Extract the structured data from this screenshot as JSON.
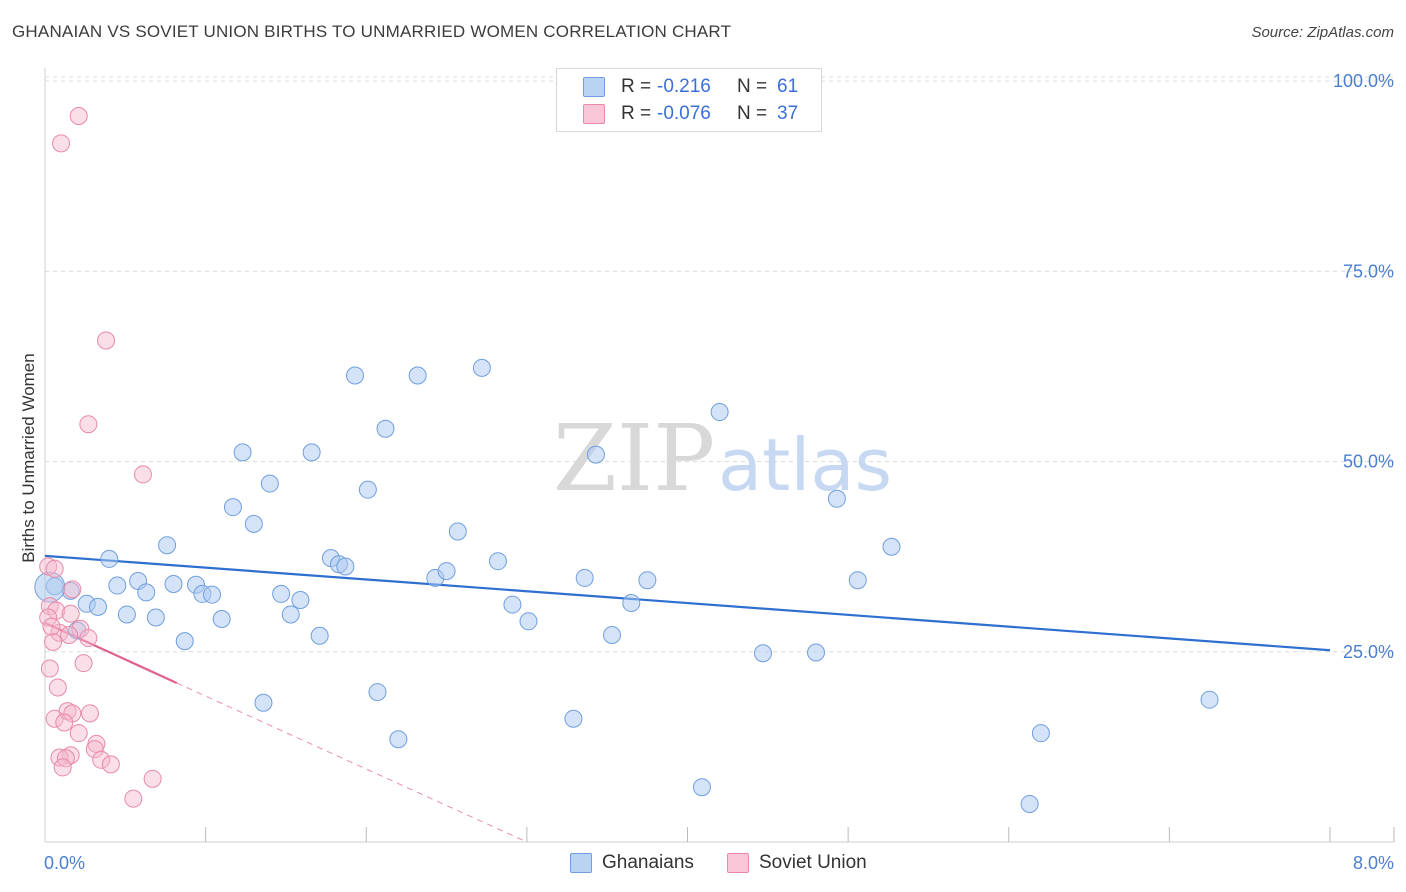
{
  "title": "GHANAIAN VS SOVIET UNION BIRTHS TO UNMARRIED WOMEN CORRELATION CHART",
  "source": "Source: ZipAtlas.com",
  "watermark": {
    "zip": "ZIP",
    "atlas": "atlas"
  },
  "colors": {
    "blue_fill": "#a9c8ef",
    "blue_stroke": "#6f9fe0",
    "blue_line": "#2e6fd0",
    "pink_fill": "#f5b8cb",
    "pink_stroke": "#e98aa8",
    "pink_line": "#e0608e",
    "grid": "#dcdcdc",
    "tick_text": "#4a7fd0"
  },
  "legend": {
    "rows": [
      {
        "r_label": "R =",
        "r_value": "-0.216",
        "n_label": "N =",
        "n_value": "61",
        "series": "blue"
      },
      {
        "r_label": "R =",
        "r_value": "-0.076",
        "n_label": "N =",
        "n_value": "37",
        "series": "pink"
      }
    ]
  },
  "bottom_legend": {
    "ghanaians": "Ghanaians",
    "soviet_union": "Soviet Union"
  },
  "chart_data": {
    "type": "scatter",
    "title": "GHANAIAN VS SOVIET UNION BIRTHS TO UNMARRIED WOMEN CORRELATION CHART",
    "ylabel": "Births to Unmarried Women",
    "xlabel": "",
    "xlim": [
      0,
      8
    ],
    "ylim": [
      0,
      100
    ],
    "x_tick_labels": {
      "min": "0.0%",
      "max": "8.0%"
    },
    "y_ticks": [
      {
        "value": 25,
        "label": "25.0%"
      },
      {
        "value": 50,
        "label": "50.0%"
      },
      {
        "value": 75,
        "label": "75.0%"
      },
      {
        "value": 100,
        "label": "100.0%"
      }
    ],
    "series": [
      {
        "name": "Ghanaians",
        "color": "#a9c8ef",
        "r": -0.216,
        "n": 61,
        "trend": {
          "x": [
            0,
            8
          ],
          "y": [
            37.6,
            25.2
          ]
        },
        "points": [
          [
            0.06,
            33.6
          ],
          [
            0.16,
            33.0
          ],
          [
            0.26,
            31.3
          ],
          [
            0.33,
            30.9
          ],
          [
            0.2,
            27.8
          ],
          [
            0.4,
            37.2
          ],
          [
            0.45,
            33.7
          ],
          [
            0.51,
            29.9
          ],
          [
            0.58,
            34.3
          ],
          [
            0.63,
            32.8
          ],
          [
            0.69,
            29.5
          ],
          [
            0.76,
            39.0
          ],
          [
            0.8,
            33.9
          ],
          [
            0.87,
            26.4
          ],
          [
            0.94,
            33.8
          ],
          [
            0.98,
            32.6
          ],
          [
            1.04,
            32.5
          ],
          [
            1.1,
            29.3
          ],
          [
            1.17,
            44.0
          ],
          [
            1.23,
            51.2
          ],
          [
            1.3,
            41.8
          ],
          [
            1.36,
            18.3
          ],
          [
            1.4,
            47.1
          ],
          [
            1.47,
            32.6
          ],
          [
            1.53,
            29.9
          ],
          [
            1.59,
            31.8
          ],
          [
            1.66,
            51.2
          ],
          [
            1.71,
            27.1
          ],
          [
            1.78,
            37.3
          ],
          [
            1.83,
            36.5
          ],
          [
            1.87,
            36.2
          ],
          [
            1.93,
            61.3
          ],
          [
            2.01,
            46.3
          ],
          [
            2.07,
            19.7
          ],
          [
            2.12,
            54.3
          ],
          [
            2.2,
            13.5
          ],
          [
            2.32,
            61.3
          ],
          [
            2.43,
            34.7
          ],
          [
            2.5,
            35.6
          ],
          [
            2.57,
            40.8
          ],
          [
            2.72,
            62.3
          ],
          [
            2.82,
            36.9
          ],
          [
            2.91,
            31.2
          ],
          [
            3.01,
            29.0
          ],
          [
            3.29,
            16.2
          ],
          [
            3.36,
            34.7
          ],
          [
            3.43,
            50.9
          ],
          [
            3.53,
            27.2
          ],
          [
            3.65,
            31.4
          ],
          [
            3.75,
            34.4
          ],
          [
            4.09,
            7.2
          ],
          [
            4.2,
            56.5
          ],
          [
            4.47,
            24.8
          ],
          [
            4.8,
            24.9
          ],
          [
            4.93,
            45.1
          ],
          [
            5.06,
            34.4
          ],
          [
            5.27,
            38.8
          ],
          [
            6.13,
            5.0
          ],
          [
            6.2,
            14.3
          ],
          [
            7.25,
            18.7
          ],
          [
            0.03,
            33.5
          ]
        ]
      },
      {
        "name": "Soviet Union",
        "color": "#f5b8cb",
        "r": -0.076,
        "n": 37,
        "trend_solid": {
          "x": [
            0,
            0.82
          ],
          "y": [
            28.8,
            20.9
          ]
        },
        "trend_dashed": {
          "x": [
            0.82,
            3.0
          ],
          "y": [
            20.9,
            0
          ]
        },
        "points": [
          [
            0.21,
            95.4
          ],
          [
            0.1,
            91.8
          ],
          [
            0.38,
            65.9
          ],
          [
            0.27,
            54.9
          ],
          [
            0.61,
            48.3
          ],
          [
            0.02,
            36.2
          ],
          [
            0.06,
            35.9
          ],
          [
            0.17,
            33.2
          ],
          [
            0.03,
            31.0
          ],
          [
            0.07,
            30.4
          ],
          [
            0.16,
            30.0
          ],
          [
            0.22,
            28.0
          ],
          [
            0.09,
            27.5
          ],
          [
            0.15,
            27.2
          ],
          [
            0.27,
            26.8
          ],
          [
            0.05,
            26.3
          ],
          [
            0.24,
            23.5
          ],
          [
            0.03,
            22.8
          ],
          [
            0.08,
            20.3
          ],
          [
            0.14,
            17.2
          ],
          [
            0.17,
            16.9
          ],
          [
            0.28,
            16.9
          ],
          [
            0.06,
            16.2
          ],
          [
            0.12,
            15.7
          ],
          [
            0.21,
            14.3
          ],
          [
            0.32,
            12.9
          ],
          [
            0.31,
            12.2
          ],
          [
            0.16,
            11.4
          ],
          [
            0.09,
            11.1
          ],
          [
            0.13,
            11.0
          ],
          [
            0.35,
            10.8
          ],
          [
            0.41,
            10.2
          ],
          [
            0.11,
            9.8
          ],
          [
            0.67,
            8.3
          ],
          [
            0.55,
            5.7
          ],
          [
            0.02,
            29.5
          ],
          [
            0.04,
            28.3
          ]
        ]
      }
    ]
  }
}
